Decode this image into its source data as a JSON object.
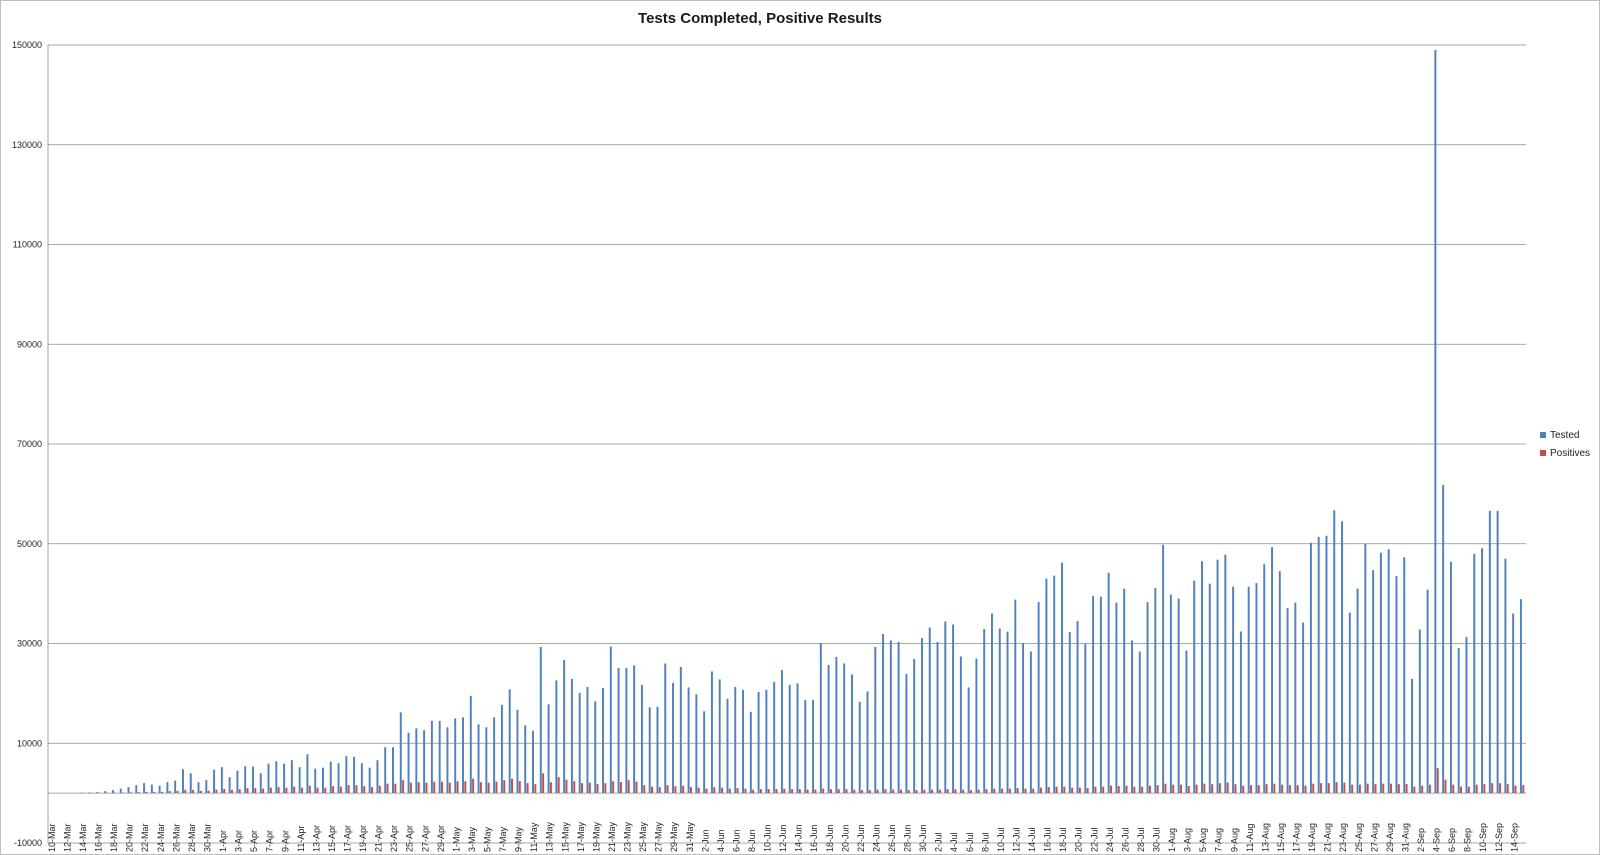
{
  "chart_data": {
    "type": "bar",
    "title": "Tests Completed, Positive Results",
    "xlabel": "",
    "ylabel": "",
    "ylim": [
      -10000,
      150000
    ],
    "yticks": [
      -10000,
      10000,
      30000,
      50000,
      70000,
      90000,
      110000,
      130000,
      150000
    ],
    "grid": true,
    "legend_position": "right",
    "start_label": "10-Mar",
    "series": [
      {
        "name": "Tested",
        "color": "#4f81bd",
        "values": [
          0,
          0,
          0,
          0,
          100,
          150,
          250,
          400,
          600,
          900,
          1200,
          1600,
          2000,
          1700,
          1500,
          2200,
          2500,
          4800,
          4000,
          2200,
          2600,
          4700,
          5200,
          3200,
          4500,
          5400,
          5300,
          4000,
          5900,
          6400,
          5900,
          6600,
          5200,
          7800,
          4900,
          5100,
          6300,
          6000,
          7400,
          7300,
          6000,
          5100,
          6600,
          9200,
          9200,
          16200,
          12100,
          13000,
          12600,
          14500,
          14500,
          13200,
          15000,
          15200,
          19500,
          13800,
          13200,
          15200,
          17700,
          20800,
          16700,
          13600,
          12500,
          29300,
          17800,
          22600,
          26700,
          22900,
          20100,
          21300,
          18400,
          21100,
          29400,
          25100,
          25100,
          25600,
          21700,
          17200,
          17300,
          26000,
          22100,
          25300,
          21200,
          19800,
          16400,
          24400,
          22800,
          18900,
          21300,
          20700,
          16300,
          20300,
          20700,
          22300,
          24700,
          21700,
          22000,
          18700,
          18700,
          30100,
          25700,
          27300,
          26000,
          23800,
          18300,
          20400,
          29300,
          31900,
          30600,
          30300,
          23900,
          26900,
          31100,
          33200,
          30300,
          34400,
          33800,
          27400,
          21200,
          27000,
          32900,
          36000,
          33000,
          32400,
          38800,
          30100,
          28400,
          38300,
          43000,
          43600,
          46200,
          32300,
          34500,
          29900,
          39500,
          39400,
          44200,
          38200,
          41000,
          30600,
          28400,
          38300,
          41100,
          49800,
          39800,
          39000,
          28600,
          42600,
          46500,
          42000,
          46800,
          47800,
          41400,
          32400,
          41400,
          42100,
          45900,
          49300,
          44500,
          37100,
          38200,
          34200,
          50200,
          51400,
          51600,
          56700,
          54500,
          36200,
          41000,
          50000,
          44700,
          48200,
          48900,
          43500,
          47300,
          22900,
          32800,
          40800,
          149000,
          61800,
          46400,
          29100,
          31300,
          48000,
          49100,
          56600,
          56600,
          47000,
          36000,
          38900
        ]
      },
      {
        "name": "Positives",
        "color": "#c0504d",
        "values": [
          0,
          0,
          0,
          0,
          20,
          30,
          40,
          60,
          80,
          120,
          160,
          200,
          250,
          250,
          250,
          400,
          450,
          700,
          650,
          450,
          500,
          700,
          850,
          650,
          800,
          1000,
          1000,
          900,
          1100,
          1200,
          1100,
          1300,
          1100,
          1500,
          1100,
          1100,
          1400,
          1300,
          1600,
          1600,
          1400,
          1200,
          1500,
          1900,
          1900,
          2600,
          2100,
          2200,
          2100,
          2300,
          2300,
          2100,
          2400,
          2400,
          2900,
          2200,
          2100,
          2300,
          2600,
          2900,
          2400,
          2000,
          1800,
          4000,
          2200,
          3200,
          2700,
          2400,
          2000,
          2100,
          1800,
          2000,
          2400,
          2200,
          2600,
          2300,
          1600,
          1300,
          1200,
          1600,
          1400,
          1500,
          1200,
          1100,
          900,
          1200,
          1100,
          900,
          1000,
          900,
          700,
          800,
          800,
          800,
          900,
          800,
          800,
          700,
          700,
          900,
          800,
          800,
          800,
          700,
          600,
          600,
          700,
          800,
          700,
          700,
          600,
          600,
          700,
          700,
          700,
          800,
          800,
          700,
          600,
          700,
          800,
          900,
          900,
          900,
          1000,
          900,
          900,
          1100,
          1200,
          1300,
          1300,
          1100,
          1100,
          1000,
          1300,
          1300,
          1500,
          1400,
          1500,
          1300,
          1300,
          1500,
          1600,
          1900,
          1700,
          1700,
          1400,
          1700,
          1900,
          1800,
          2000,
          2100,
          1800,
          1500,
          1600,
          1600,
          1800,
          1900,
          1700,
          1600,
          1600,
          1500,
          1900,
          2000,
          2000,
          2200,
          2100,
          1700,
          1700,
          1900,
          1800,
          1900,
          1900,
          1800,
          1800,
          1300,
          1500,
          1700,
          5000,
          2700,
          1700,
          1300,
          1300,
          1700,
          1800,
          2000,
          2000,
          1800,
          1500,
          1600
        ]
      }
    ]
  }
}
